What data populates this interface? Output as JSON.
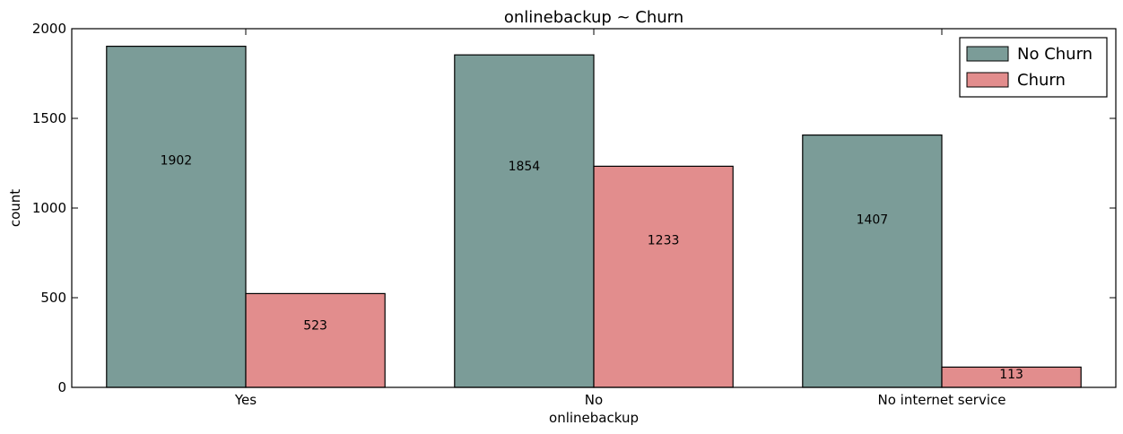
{
  "chart_data": {
    "type": "bar",
    "title": "onlinebackup ~ Churn",
    "xlabel": "onlinebackup",
    "ylabel": "count",
    "categories": [
      "Yes",
      "No",
      "No internet service"
    ],
    "series": [
      {
        "name": "No Churn",
        "values": [
          1902,
          1854,
          1407
        ],
        "color": "#7b9c98"
      },
      {
        "name": "Churn",
        "values": [
          523,
          1233,
          113
        ],
        "color": "#e28d8d"
      }
    ],
    "ylim": [
      0,
      2000
    ],
    "yticks": [
      0,
      500,
      1000,
      1500,
      2000
    ],
    "legend": "top-right",
    "grid": false
  }
}
